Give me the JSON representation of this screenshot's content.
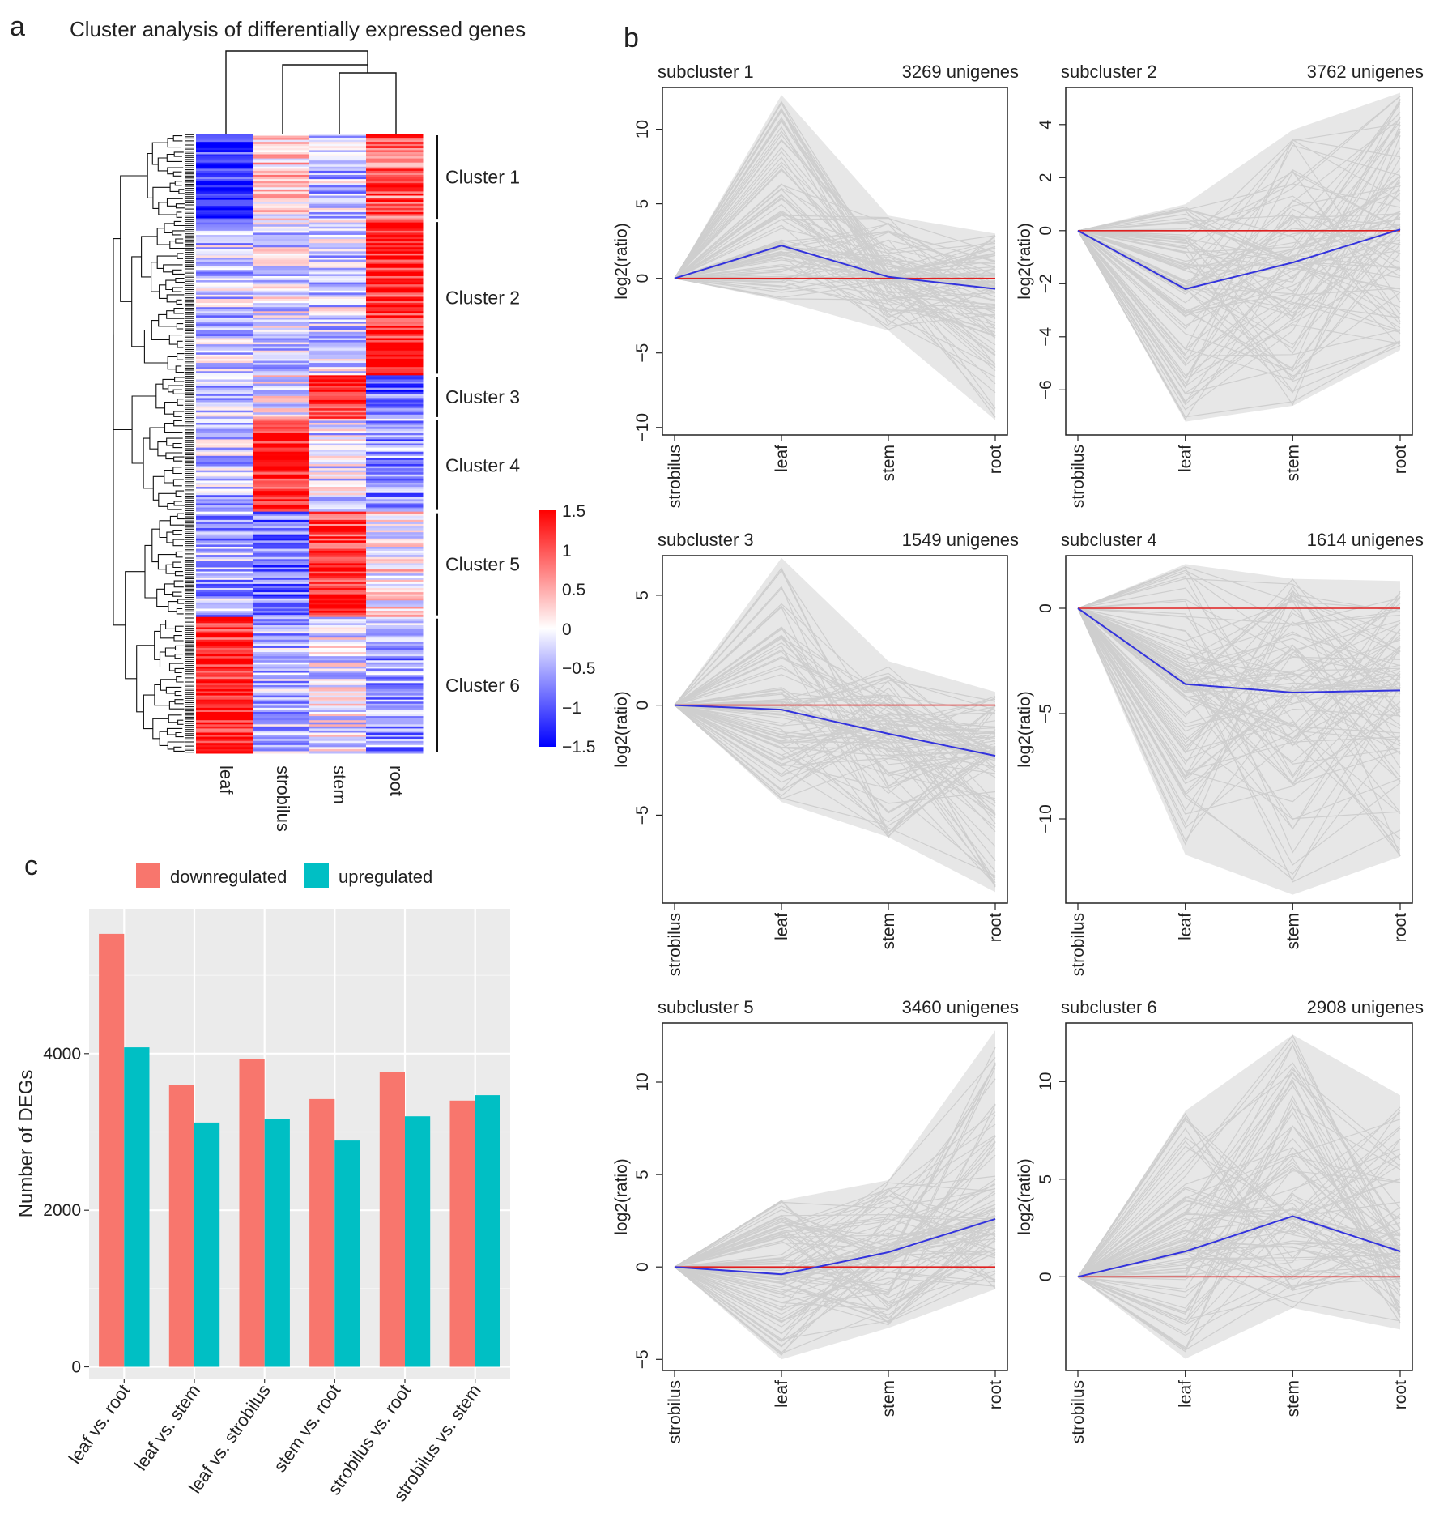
{
  "panels": {
    "a": "a",
    "b": "b",
    "c": "c"
  },
  "colors": {
    "red": "#ff0000",
    "blue": "#0000ff",
    "white": "#ffffff",
    "grey_line": "#c8c8c8",
    "mean_line": "#3333dd",
    "zero_line": "#e02020",
    "salmon": "#f8766d",
    "teal": "#00bfc4",
    "ggbg": "#ebebeb"
  },
  "chart_data": [
    {
      "id": "a",
      "type": "heatmap",
      "title": "Cluster analysis of differentially expressed genes",
      "columns": [
        "leaf",
        "strobilus",
        "stem",
        "root"
      ],
      "colorbar": {
        "min": -1.5,
        "max": 1.5,
        "ticks": [
          "1.5",
          "1",
          "0.5",
          "0",
          "−0.5",
          "−1",
          "−1.5"
        ]
      },
      "clusters": [
        {
          "label": "Cluster 1",
          "fraction": 0.14,
          "means": [
            -1.2,
            0.25,
            -0.35,
            0.95
          ]
        },
        {
          "label": "Cluster 2",
          "fraction": 0.25,
          "means": [
            -0.35,
            -0.2,
            -0.25,
            1.3
          ]
        },
        {
          "label": "Cluster 3",
          "fraction": 0.07,
          "means": [
            -0.3,
            0.0,
            1.15,
            -0.9
          ]
        },
        {
          "label": "Cluster 4",
          "fraction": 0.15,
          "means": [
            -0.4,
            1.3,
            -0.2,
            -0.6
          ]
        },
        {
          "label": "Cluster 5",
          "fraction": 0.17,
          "means": [
            -0.5,
            -0.8,
            1.2,
            0.1
          ]
        },
        {
          "label": "Cluster 6",
          "fraction": 0.22,
          "means": [
            1.3,
            -0.45,
            -0.1,
            -0.55
          ]
        }
      ]
    },
    {
      "id": "b",
      "type": "line",
      "x": [
        "strobilus",
        "leaf",
        "stem",
        "root"
      ],
      "ylabel": "log2(ratio)",
      "subplots": [
        {
          "name": "subcluster 1",
          "count": "3269 unigenes",
          "mean": [
            0,
            2.2,
            0.1,
            -0.7
          ],
          "ylim": [
            -10.5,
            12.8
          ],
          "yticks": [
            -10,
            -5,
            0,
            5,
            10
          ],
          "ytick_labels": [
            "−10",
            "−5",
            "0",
            "5",
            "10"
          ],
          "env_min": [
            0,
            -1.5,
            -3.5,
            -9.5
          ],
          "env_max": [
            0,
            12.3,
            4.2,
            3.0
          ]
        },
        {
          "name": "subcluster 2",
          "count": "3762 unigenes",
          "mean": [
            0,
            -2.2,
            -1.2,
            0.05
          ],
          "ylim": [
            -7.7,
            5.4
          ],
          "yticks": [
            -6,
            -4,
            -2,
            0,
            2,
            4
          ],
          "ytick_labels": [
            "−6",
            "−4",
            "−2",
            "0",
            "2",
            "4"
          ],
          "env_min": [
            0,
            -7.2,
            -6.6,
            -4.5
          ],
          "env_max": [
            0,
            1.0,
            3.8,
            5.2
          ]
        },
        {
          "name": "subcluster 3",
          "count": "1549 unigenes",
          "mean": [
            0,
            -0.2,
            -1.3,
            -2.3
          ],
          "ylim": [
            -9.0,
            6.8
          ],
          "yticks": [
            -5,
            0,
            5
          ],
          "ytick_labels": [
            "−5",
            "0",
            "5"
          ],
          "env_min": [
            0,
            -4.4,
            -6.0,
            -8.5
          ],
          "env_max": [
            0,
            6.7,
            2.0,
            0.6
          ]
        },
        {
          "name": "subcluster 4",
          "count": "1614 unigenes",
          "mean": [
            0,
            -3.6,
            -4.0,
            -3.9
          ],
          "ylim": [
            -14.0,
            2.5
          ],
          "yticks": [
            -10,
            -5,
            0
          ],
          "ytick_labels": [
            "−10",
            "−5",
            "0"
          ],
          "env_min": [
            0,
            -11.7,
            -13.6,
            -11.8
          ],
          "env_max": [
            0,
            2.1,
            1.4,
            1.3
          ]
        },
        {
          "name": "subcluster 5",
          "count": "3460 unigenes",
          "mean": [
            0,
            -0.4,
            0.8,
            2.6
          ],
          "ylim": [
            -5.6,
            13.2
          ],
          "yticks": [
            -5,
            0,
            5,
            10
          ],
          "ytick_labels": [
            "−5",
            "0",
            "5",
            "10"
          ],
          "env_min": [
            0,
            -5.0,
            -3.3,
            -1.2
          ],
          "env_max": [
            0,
            3.6,
            4.7,
            12.8
          ]
        },
        {
          "name": "subcluster 6",
          "count": "2908 unigenes",
          "mean": [
            0,
            1.3,
            3.1,
            1.3
          ],
          "ylim": [
            -4.8,
            13.0
          ],
          "yticks": [
            0,
            5,
            10
          ],
          "ytick_labels": [
            "0",
            "5",
            "10"
          ],
          "env_min": [
            0,
            -4.2,
            -1.6,
            -2.7
          ],
          "env_max": [
            0,
            8.5,
            12.4,
            9.3
          ]
        }
      ]
    },
    {
      "id": "c",
      "type": "bar",
      "categories": [
        "leaf vs. root",
        "leaf vs. stem",
        "leaf vs. strobilus",
        "stem vs. root",
        "strobilus vs. root",
        "strobilus vs. stem"
      ],
      "series": [
        {
          "name": "downregulated",
          "color": "#f8766d",
          "values": [
            5530,
            3600,
            3930,
            3420,
            3760,
            3400
          ]
        },
        {
          "name": "upregulated",
          "color": "#00bfc4",
          "values": [
            4080,
            3120,
            3170,
            2890,
            3200,
            3470
          ]
        }
      ],
      "ylabel": "Number of DEGs",
      "ylim": [
        -150,
        5850
      ],
      "yticks": [
        0,
        2000,
        4000
      ]
    }
  ]
}
